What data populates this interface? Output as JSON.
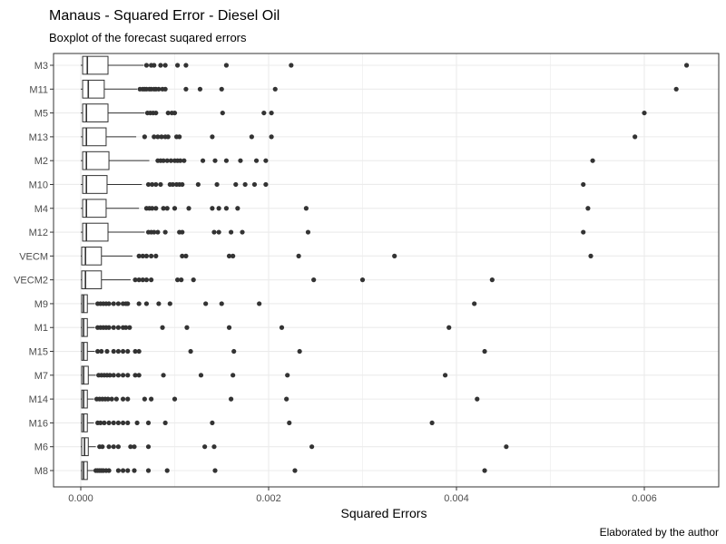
{
  "chart_data": {
    "type": "boxplot",
    "title": "Manaus - Squared Error - Diesel Oil",
    "subtitle": "Boxplot of the forecast suqared errors",
    "xlabel": "Squared Errors",
    "ylabel": "",
    "caption": "Elaborated by the author",
    "xlim": [
      -0.0003,
      0.0068
    ],
    "xticks": [
      0.0,
      0.002,
      0.004,
      0.006
    ],
    "xtick_labels": [
      "0.000",
      "0.002",
      "0.004",
      "0.006"
    ],
    "grid": true,
    "colors": {
      "box_fill": "#ffffff",
      "stroke": "#333333",
      "outlier": "#333333",
      "grid": "#ebebeb",
      "panel_border": "#333333"
    },
    "categories": [
      "M3",
      "M11",
      "M5",
      "M13",
      "M2",
      "M10",
      "M4",
      "M12",
      "VECM",
      "VECM2",
      "M9",
      "M1",
      "M15",
      "M7",
      "M14",
      "M16",
      "M6",
      "M8"
    ],
    "boxes": [
      {
        "name": "M3",
        "whisker_low": 0.0,
        "q1": 2e-05,
        "median": 7e-05,
        "q3": 0.00029,
        "whisker_high": 0.00067,
        "outliers": [
          0.0007,
          0.00075,
          0.00078,
          0.00085,
          0.0009,
          0.00103,
          0.00112,
          0.00155,
          0.00224,
          0.00645
        ]
      },
      {
        "name": "M11",
        "whisker_low": 0.0,
        "q1": 2e-05,
        "median": 8e-05,
        "q3": 0.00025,
        "whisker_high": 0.0006,
        "outliers": [
          0.00063,
          0.00066,
          0.00068,
          0.0007,
          0.00073,
          0.00075,
          0.00078,
          0.0008,
          0.00083,
          0.00087,
          0.0009,
          0.00112,
          0.00127,
          0.0015,
          0.00207,
          0.00634
        ]
      },
      {
        "name": "M5",
        "whisker_low": 0.0,
        "q1": 2e-05,
        "median": 6e-05,
        "q3": 0.00029,
        "whisker_high": 0.00068,
        "outliers": [
          0.00071,
          0.00074,
          0.00077,
          0.0008,
          0.00093,
          0.00097,
          0.001,
          0.00151,
          0.00195,
          0.00203,
          0.006
        ]
      },
      {
        "name": "M13",
        "whisker_low": 0.0,
        "q1": 2e-05,
        "median": 6e-05,
        "q3": 0.00027,
        "whisker_high": 0.00059,
        "outliers": [
          0.00068,
          0.00078,
          0.00082,
          0.00086,
          0.0009,
          0.00093,
          0.00102,
          0.00105,
          0.0014,
          0.00182,
          0.00203,
          0.0059
        ]
      },
      {
        "name": "M2",
        "whisker_low": 0.0,
        "q1": 2e-05,
        "median": 6e-05,
        "q3": 0.0003,
        "whisker_high": 0.00073,
        "outliers": [
          0.00082,
          0.00085,
          0.00088,
          0.00092,
          0.00096,
          0.001,
          0.00103,
          0.00106,
          0.0011,
          0.0013,
          0.00143,
          0.00155,
          0.0017,
          0.00187,
          0.00197,
          0.00545
        ]
      },
      {
        "name": "M10",
        "whisker_low": 0.0,
        "q1": 2e-05,
        "median": 6e-05,
        "q3": 0.00028,
        "whisker_high": 0.00065,
        "outliers": [
          0.00072,
          0.00076,
          0.0008,
          0.00085,
          0.00095,
          0.00098,
          0.00102,
          0.00105,
          0.00108,
          0.00125,
          0.00145,
          0.00165,
          0.00175,
          0.00185,
          0.00197,
          0.00535
        ]
      },
      {
        "name": "M4",
        "whisker_low": 0.0,
        "q1": 2e-05,
        "median": 6e-05,
        "q3": 0.00027,
        "whisker_high": 0.00062,
        "outliers": [
          0.0007,
          0.00073,
          0.00076,
          0.0008,
          0.00088,
          0.00092,
          0.001,
          0.00115,
          0.0014,
          0.00147,
          0.00155,
          0.00167,
          0.0024,
          0.0054
        ]
      },
      {
        "name": "M12",
        "whisker_low": 0.0,
        "q1": 2e-05,
        "median": 6e-05,
        "q3": 0.00029,
        "whisker_high": 0.00068,
        "outliers": [
          0.00072,
          0.00075,
          0.00078,
          0.00082,
          0.0009,
          0.00105,
          0.00108,
          0.00142,
          0.00147,
          0.0016,
          0.00172,
          0.00242,
          0.00535
        ]
      },
      {
        "name": "VECM",
        "whisker_low": 0.0,
        "q1": 1e-05,
        "median": 5e-05,
        "q3": 0.00022,
        "whisker_high": 0.00055,
        "outliers": [
          0.00062,
          0.00066,
          0.0007,
          0.00075,
          0.0008,
          0.00108,
          0.00112,
          0.00158,
          0.00162,
          0.00232,
          0.00334,
          0.00543
        ]
      },
      {
        "name": "VECM2",
        "whisker_low": 0.0,
        "q1": 1e-05,
        "median": 5e-05,
        "q3": 0.00022,
        "whisker_high": 0.00053,
        "outliers": [
          0.00058,
          0.00062,
          0.00066,
          0.0007,
          0.00075,
          0.00103,
          0.00107,
          0.0012,
          0.00248,
          0.003,
          0.00438
        ]
      },
      {
        "name": "M9",
        "whisker_low": 0.0,
        "q1": 1e-05,
        "median": 3e-05,
        "q3": 7e-05,
        "whisker_high": 0.00015,
        "outliers": [
          0.00018,
          0.00021,
          0.00024,
          0.00027,
          0.0003,
          0.00035,
          0.0004,
          0.00045,
          0.00048,
          0.0005,
          0.00062,
          0.0007,
          0.00083,
          0.00095,
          0.00133,
          0.0015,
          0.0019,
          0.00419
        ]
      },
      {
        "name": "M1",
        "whisker_low": 0.0,
        "q1": 1e-05,
        "median": 3e-05,
        "q3": 7e-05,
        "whisker_high": 0.00015,
        "outliers": [
          0.00018,
          0.00021,
          0.00024,
          0.00027,
          0.0003,
          0.00035,
          0.0004,
          0.00045,
          0.00048,
          0.00052,
          0.00087,
          0.00113,
          0.00158,
          0.00214,
          0.00392
        ]
      },
      {
        "name": "M15",
        "whisker_low": 0.0,
        "q1": 1e-05,
        "median": 3e-05,
        "q3": 7e-05,
        "whisker_high": 0.00015,
        "outliers": [
          0.00018,
          0.00022,
          0.00028,
          0.00035,
          0.0004,
          0.00045,
          0.0005,
          0.00058,
          0.00062,
          0.00117,
          0.00163,
          0.00233,
          0.0043
        ]
      },
      {
        "name": "M7",
        "whisker_low": 0.0,
        "q1": 1e-05,
        "median": 3e-05,
        "q3": 8e-05,
        "whisker_high": 0.00016,
        "outliers": [
          0.00019,
          0.00022,
          0.00025,
          0.00028,
          0.00031,
          0.00035,
          0.0004,
          0.00045,
          0.0005,
          0.00058,
          0.00062,
          0.00088,
          0.00128,
          0.00162,
          0.0022,
          0.00388
        ]
      },
      {
        "name": "M14",
        "whisker_low": 0.0,
        "q1": 1e-05,
        "median": 3e-05,
        "q3": 7e-05,
        "whisker_high": 0.00014,
        "outliers": [
          0.00017,
          0.0002,
          0.00023,
          0.00026,
          0.00029,
          0.00033,
          0.00038,
          0.00045,
          0.0005,
          0.00068,
          0.00075,
          0.001,
          0.0016,
          0.00219,
          0.00422
        ]
      },
      {
        "name": "M16",
        "whisker_low": 0.0,
        "q1": 1e-05,
        "median": 3e-05,
        "q3": 7e-05,
        "whisker_high": 0.00014,
        "outliers": [
          0.00018,
          0.00021,
          0.00025,
          0.0003,
          0.00035,
          0.0004,
          0.00045,
          0.0005,
          0.0006,
          0.00072,
          0.0009,
          0.0014,
          0.00222,
          0.00374
        ]
      },
      {
        "name": "M6",
        "whisker_low": 0.0,
        "q1": 1e-05,
        "median": 4e-05,
        "q3": 8e-05,
        "whisker_high": 0.00016,
        "outliers": [
          0.0002,
          0.00023,
          0.0003,
          0.00035,
          0.0004,
          0.00053,
          0.00057,
          0.00072,
          0.00132,
          0.00142,
          0.00246,
          0.00453
        ]
      },
      {
        "name": "M8",
        "whisker_low": 0.0,
        "q1": 1e-05,
        "median": 3e-05,
        "q3": 7e-05,
        "whisker_high": 0.00014,
        "outliers": [
          0.00016,
          0.00018,
          0.0002,
          0.00022,
          0.00024,
          0.00027,
          0.0003,
          0.0004,
          0.00045,
          0.0005,
          0.00057,
          0.00072,
          0.00092,
          0.00143,
          0.00228,
          0.0043
        ]
      }
    ]
  }
}
